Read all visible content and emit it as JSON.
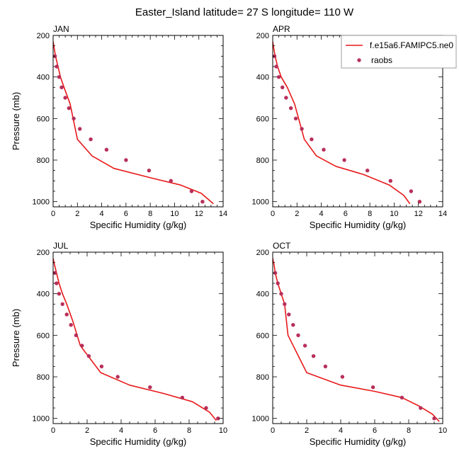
{
  "title": "Easter_Island  latitude= 27 S longitude= 110 W",
  "legend": {
    "model_label": "f.e15a6.FAMIPC5.ne0",
    "obs_label": "raobs"
  },
  "colors": {
    "model_line": "#e8191a",
    "obs_marker": "#b8305a",
    "axis": "#000000"
  },
  "chart_data": [
    {
      "type": "line",
      "panel": "JAN",
      "title": "JAN",
      "xlabel": "Specific Humidity (g/kg)",
      "ylabel": "Pressure (mb)",
      "xlim": [
        0,
        14
      ],
      "ylim": [
        1025,
        200
      ],
      "xticks": [
        0,
        2,
        4,
        6,
        8,
        10,
        12,
        14
      ],
      "yticks": [
        200,
        400,
        600,
        800,
        1000
      ],
      "series": [
        {
          "name": "f.e15a6.FAMIPC5.ne0",
          "style": "line",
          "x": [
            0.0,
            0.08,
            0.2,
            0.4,
            0.6,
            0.9,
            1.4,
            2.0,
            3.2,
            5.0,
            8.0,
            10.5,
            12.2,
            13.2
          ],
          "y": [
            230,
            260,
            300,
            350,
            400,
            450,
            530,
            700,
            780,
            840,
            885,
            920,
            960,
            1010
          ]
        },
        {
          "name": "raobs",
          "style": "markers",
          "x": [
            0.15,
            0.3,
            0.5,
            0.7,
            1.0,
            1.3,
            1.7,
            2.2,
            3.1,
            4.4,
            6.0,
            7.9,
            9.7,
            11.4,
            12.3
          ],
          "y": [
            300,
            350,
            400,
            450,
            500,
            550,
            600,
            650,
            700,
            750,
            800,
            850,
            900,
            950,
            1000
          ]
        }
      ]
    },
    {
      "type": "line",
      "panel": "APR",
      "title": "APR",
      "xlabel": "Specific Humidity (g/kg)",
      "ylabel": "",
      "xlim": [
        0,
        14
      ],
      "ylim": [
        1025,
        200
      ],
      "xticks": [
        0,
        2,
        4,
        6,
        8,
        10,
        12,
        14
      ],
      "yticks": [
        200,
        400,
        600,
        800,
        1000
      ],
      "series": [
        {
          "name": "f.e15a6.FAMIPC5.ne0",
          "style": "line",
          "x": [
            0.0,
            0.08,
            0.2,
            0.4,
            0.7,
            1.2,
            1.8,
            2.6,
            3.6,
            5.2,
            7.5,
            9.6,
            10.8,
            11.3
          ],
          "y": [
            230,
            260,
            300,
            350,
            400,
            450,
            530,
            700,
            780,
            830,
            870,
            920,
            970,
            1010
          ]
        },
        {
          "name": "raobs",
          "style": "markers",
          "x": [
            0.15,
            0.3,
            0.5,
            0.8,
            1.1,
            1.5,
            1.9,
            2.4,
            3.2,
            4.2,
            5.9,
            7.8,
            9.7,
            11.4,
            12.1
          ],
          "y": [
            300,
            350,
            400,
            450,
            500,
            550,
            600,
            650,
            700,
            750,
            800,
            850,
            900,
            950,
            1000
          ]
        }
      ]
    },
    {
      "type": "line",
      "panel": "JUL",
      "title": "JUL",
      "xlabel": "Specific Humidity (g/kg)",
      "ylabel": "Pressure (mb)",
      "xlim": [
        0,
        10
      ],
      "ylim": [
        1025,
        200
      ],
      "xticks": [
        0,
        2,
        4,
        6,
        8,
        10
      ],
      "yticks": [
        200,
        400,
        600,
        800,
        1000
      ],
      "series": [
        {
          "name": "f.e15a6.FAMIPC5.ne0",
          "style": "line",
          "x": [
            0.0,
            0.08,
            0.2,
            0.35,
            0.55,
            0.8,
            1.15,
            1.6,
            2.8,
            4.5,
            6.5,
            8.2,
            9.2,
            9.6
          ],
          "y": [
            230,
            260,
            300,
            350,
            400,
            450,
            530,
            650,
            780,
            840,
            880,
            920,
            970,
            1010
          ]
        },
        {
          "name": "raobs",
          "style": "markers",
          "x": [
            0.1,
            0.2,
            0.35,
            0.55,
            0.8,
            1.05,
            1.35,
            1.7,
            2.1,
            2.85,
            3.8,
            5.7,
            7.6,
            9.0,
            9.7
          ],
          "y": [
            300,
            350,
            400,
            450,
            500,
            550,
            600,
            650,
            700,
            750,
            800,
            850,
            900,
            950,
            1000
          ]
        }
      ]
    },
    {
      "type": "line",
      "panel": "OCT",
      "title": "OCT",
      "xlabel": "Specific Humidity (g/kg)",
      "ylabel": "",
      "xlim": [
        0,
        10
      ],
      "ylim": [
        1025,
        200
      ],
      "xticks": [
        0,
        2,
        4,
        6,
        8,
        10
      ],
      "yticks": [
        200,
        400,
        600,
        800,
        1000
      ],
      "series": [
        {
          "name": "f.e15a6.FAMIPC5.ne0",
          "style": "line",
          "x": [
            0.0,
            0.08,
            0.15,
            0.3,
            0.5,
            0.7,
            0.9,
            2.0,
            4.0,
            6.0,
            7.6,
            8.6,
            9.4,
            9.8
          ],
          "y": [
            230,
            260,
            300,
            350,
            400,
            450,
            600,
            780,
            840,
            870,
            900,
            940,
            980,
            1015
          ]
        },
        {
          "name": "raobs",
          "style": "markers",
          "x": [
            0.15,
            0.3,
            0.5,
            0.7,
            0.95,
            1.2,
            1.5,
            1.9,
            2.4,
            3.1,
            4.1,
            5.9,
            7.6,
            8.7,
            9.5
          ],
          "y": [
            300,
            350,
            400,
            450,
            500,
            550,
            600,
            650,
            700,
            750,
            800,
            850,
            900,
            950,
            1000
          ]
        }
      ]
    }
  ]
}
